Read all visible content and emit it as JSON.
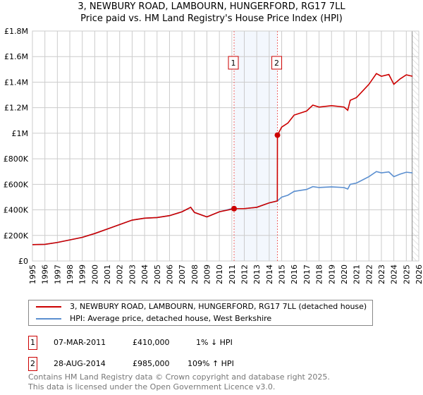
{
  "title_line1": "3, NEWBURY ROAD, LAMBOURN, HUNGERFORD, RG17 7LL",
  "title_line2": "Price paid vs. HM Land Registry's House Price Index (HPI)",
  "chart_data": {
    "type": "line",
    "xlim": [
      1995,
      2026
    ],
    "ylim": [
      0,
      1800000
    ],
    "yticks": [
      0,
      200000,
      400000,
      600000,
      800000,
      1000000,
      1200000,
      1400000,
      1600000,
      1800000
    ],
    "ytick_labels": [
      "£0",
      "£200K",
      "£400K",
      "£600K",
      "£800K",
      "£1M",
      "£1.2M",
      "£1.4M",
      "£1.6M",
      "£1.8M"
    ],
    "xticks": [
      1995,
      1996,
      1997,
      1998,
      1999,
      2000,
      2001,
      2002,
      2003,
      2004,
      2005,
      2006,
      2007,
      2008,
      2009,
      2010,
      2011,
      2012,
      2013,
      2014,
      2015,
      2016,
      2017,
      2018,
      2019,
      2020,
      2021,
      2022,
      2023,
      2024,
      2025,
      2026
    ],
    "grid": true,
    "forecast_hatch_from": 2025.47,
    "shaded_span": [
      2011.18,
      2014.66
    ],
    "series": [
      {
        "name": "3, NEWBURY ROAD, LAMBOURN, HUNGERFORD, RG17 7LL (detached house)",
        "color": "#cc0000",
        "x": [
          1995,
          1996,
          1997,
          1998,
          1999,
          2000,
          2001,
          2002,
          2003,
          2004,
          2005,
          2006,
          2007,
          2007.7,
          2008,
          2009,
          2010,
          2011,
          2011.18,
          2012,
          2013,
          2014,
          2014.65,
          2014.66,
          2015,
          2015.5,
          2016,
          2017,
          2017.5,
          2018,
          2019,
          2020,
          2020.3,
          2020.5,
          2021,
          2022,
          2022.6,
          2023,
          2023.6,
          2024,
          2024.5,
          2025,
          2025.5
        ],
        "y": [
          128000,
          130000,
          145000,
          165000,
          185000,
          215000,
          250000,
          285000,
          320000,
          335000,
          340000,
          355000,
          385000,
          420000,
          380000,
          345000,
          385000,
          405000,
          410000,
          410000,
          420000,
          455000,
          470000,
          985000,
          1048000,
          1080000,
          1142000,
          1174000,
          1220000,
          1205000,
          1216000,
          1205000,
          1180000,
          1258000,
          1279000,
          1383000,
          1467000,
          1446000,
          1460000,
          1383000,
          1425000,
          1457000,
          1446000
        ]
      },
      {
        "name": "HPI: Average price, detached house, West Berkshire",
        "color": "#5b8fd0",
        "x": [
          1995,
          1996,
          1997,
          1998,
          1999,
          2000,
          2001,
          2002,
          2003,
          2004,
          2005,
          2006,
          2007,
          2007.7,
          2008,
          2009,
          2010,
          2011,
          2012,
          2013,
          2014,
          2014.66,
          2015,
          2015.5,
          2016,
          2017,
          2017.5,
          2018,
          2019,
          2020,
          2020.3,
          2020.5,
          2021,
          2022,
          2022.6,
          2023,
          2023.6,
          2024,
          2024.5,
          2025,
          2025.5
        ],
        "y": [
          128000,
          130000,
          145000,
          165000,
          185000,
          215000,
          250000,
          285000,
          320000,
          335000,
          340000,
          355000,
          385000,
          420000,
          380000,
          345000,
          385000,
          410000,
          410000,
          420000,
          455000,
          470000,
          500000,
          515000,
          545000,
          560000,
          582000,
          575000,
          580000,
          575000,
          563000,
          600000,
          610000,
          660000,
          700000,
          690000,
          697000,
          660000,
          680000,
          695000,
          690000
        ]
      }
    ],
    "sales": [
      {
        "id": "1",
        "x": 2011.18,
        "y": 410000
      },
      {
        "id": "2",
        "x": 2014.66,
        "y": 985000
      }
    ]
  },
  "legend": {
    "item1": "3, NEWBURY ROAD, LAMBOURN, HUNGERFORD, RG17 7LL (detached house)",
    "item2": "HPI: Average price, detached house, West Berkshire"
  },
  "transactions": [
    {
      "id": "1",
      "date": "07-MAR-2011",
      "price": "£410,000",
      "hpi": "1% ↓ HPI"
    },
    {
      "id": "2",
      "date": "28-AUG-2014",
      "price": "£985,000",
      "hpi": "109% ↑ HPI"
    }
  ],
  "footer_line1": "Contains HM Land Registry data © Crown copyright and database right 2025.",
  "footer_line2": "This data is licensed under the Open Government Licence v3.0."
}
